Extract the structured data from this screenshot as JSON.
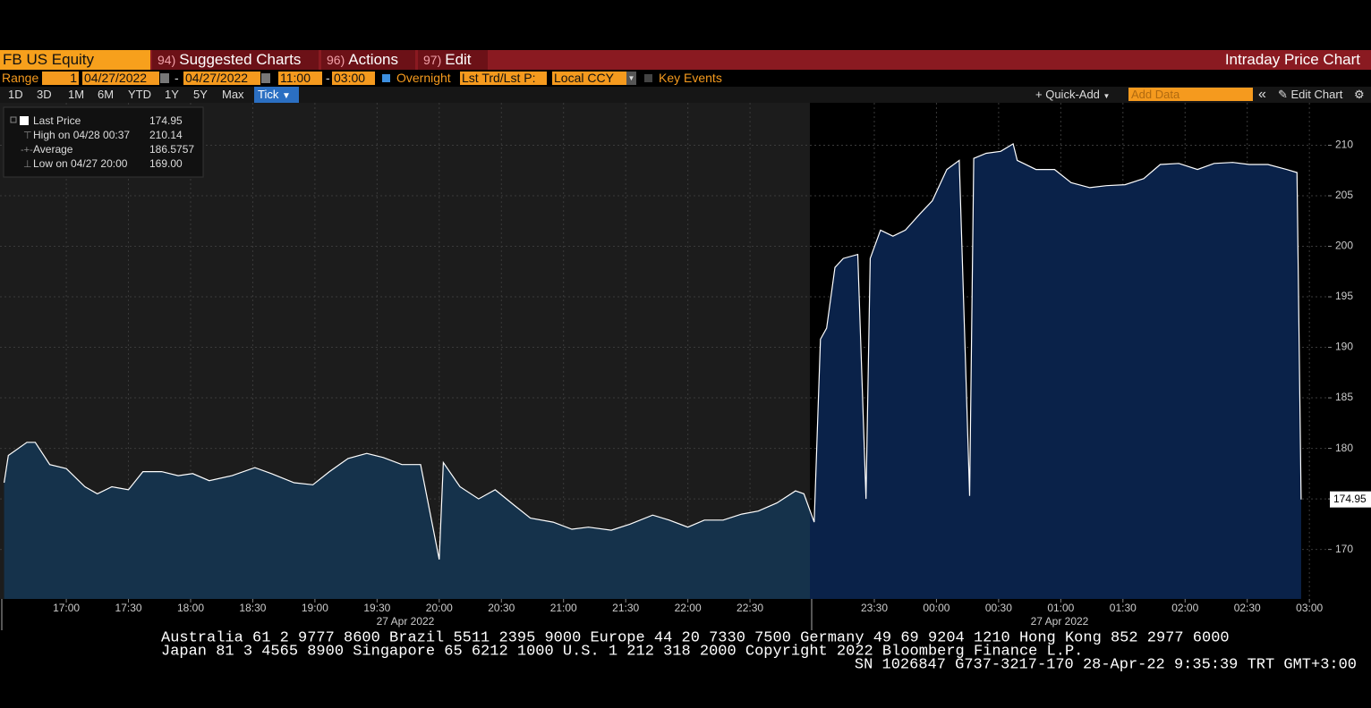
{
  "toolbar": {
    "security": "FB US Equity",
    "menus": [
      {
        "number": "94)",
        "label": "Suggested Charts"
      },
      {
        "number": "96)",
        "label": "Actions"
      },
      {
        "number": "97)",
        "label": "Edit"
      }
    ],
    "function_title": "Intraday Price Chart"
  },
  "range_bar": {
    "label": "Range",
    "period": "1",
    "start_date": "04/27/2022",
    "separator": "-",
    "end_date": "04/27/2022",
    "start_time": "11:00",
    "end_time": "03:00",
    "overnight": "Overnight",
    "price_type": "Lst Trd/Lst P:",
    "currency": "Local CCY",
    "key_events": "Key Events"
  },
  "period_tabs": {
    "tabs": [
      "1D",
      "3D",
      "1M",
      "6M",
      "YTD",
      "1Y",
      "5Y",
      "Max",
      "Tick"
    ],
    "selected": 8
  },
  "chart_tools": {
    "quick_add": "Quick-Add",
    "add_data": "Add Data",
    "edit_chart": "Edit Chart"
  },
  "legend": {
    "labels": [
      "Last Price",
      "High on 04/28 00:37",
      "Average",
      "Low on 04/27 20:00"
    ],
    "values": [
      174.95,
      210.14,
      186.5757,
      169
    ],
    "value_labels": [
      "174.95",
      "210.14",
      "186.5757",
      "169.00"
    ]
  },
  "chart_data": {
    "type": "area",
    "date_labels": [
      "27 Apr 2022",
      "27 Apr 2022"
    ],
    "xlim": [
      988,
      1629
    ],
    "ylim": [
      165.1,
      214.2
    ],
    "xticks": [
      {
        "value": 1020,
        "label": "17:00"
      },
      {
        "value": 1050,
        "label": "17:30"
      },
      {
        "value": 1080,
        "label": "18:00"
      },
      {
        "value": 1110,
        "label": "18:30"
      },
      {
        "value": 1140,
        "label": "19:00"
      },
      {
        "value": 1170,
        "label": "19:30"
      },
      {
        "value": 1200,
        "label": "20:00"
      },
      {
        "value": 1230,
        "label": "20:30"
      },
      {
        "value": 1260,
        "label": "21:00"
      },
      {
        "value": 1290,
        "label": "21:30"
      },
      {
        "value": 1320,
        "label": "22:00"
      },
      {
        "value": 1350,
        "label": "22:30"
      },
      {
        "value": 1410,
        "label": "23:30"
      },
      {
        "value": 1440,
        "label": "00:00"
      },
      {
        "value": 1470,
        "label": "00:30"
      },
      {
        "value": 1500,
        "label": "01:00"
      },
      {
        "value": 1530,
        "label": "01:30"
      },
      {
        "value": 1560,
        "label": "02:00"
      },
      {
        "value": 1590,
        "label": "02:30"
      },
      {
        "value": 1620,
        "label": "03:00"
      }
    ],
    "yticks": [
      170,
      175,
      180,
      185,
      190,
      195,
      200,
      205,
      210
    ],
    "grid": true,
    "series": [
      {
        "name": "Last Price",
        "color": "#ffffff",
        "fill_colors": [
          "#15324b",
          "#0a2249"
        ],
        "x": [
          990,
          992,
          1001,
          1005,
          1012,
          1020,
          1029,
          1035,
          1042,
          1050,
          1057,
          1066,
          1074,
          1081,
          1089,
          1100,
          1111,
          1119,
          1130,
          1139,
          1147,
          1156,
          1165,
          1173,
          1182,
          1191,
          1200,
          1202,
          1210,
          1219,
          1227,
          1236,
          1244,
          1255,
          1264,
          1272,
          1283,
          1292,
          1303,
          1311,
          1320,
          1328,
          1337,
          1346,
          1354,
          1363,
          1372,
          1376,
          1381,
          1384,
          1387,
          1391,
          1395,
          1402,
          1406,
          1408,
          1413,
          1419,
          1425,
          1432,
          1438,
          1445,
          1451,
          1456,
          1458,
          1464,
          1471,
          1477,
          1479,
          1488,
          1497,
          1505,
          1514,
          1522,
          1531,
          1540,
          1548,
          1557,
          1566,
          1574,
          1583,
          1591,
          1600,
          1609,
          1614,
          1616
        ],
        "values": [
          176.6,
          179.3,
          180.6,
          180.6,
          178.4,
          178.0,
          176.2,
          175.5,
          176.2,
          175.9,
          177.7,
          177.7,
          177.3,
          177.5,
          176.8,
          177.3,
          178.1,
          177.5,
          176.6,
          176.4,
          177.7,
          179.0,
          179.5,
          179.1,
          178.4,
          178.4,
          169.0,
          178.6,
          176.2,
          175.0,
          175.9,
          174.4,
          173.1,
          172.7,
          172.0,
          172.2,
          171.9,
          172.5,
          173.4,
          172.9,
          172.2,
          172.9,
          172.9,
          173.5,
          173.8,
          174.6,
          175.8,
          175.5,
          172.7,
          190.8,
          191.9,
          197.9,
          198.8,
          199.2,
          175.0,
          198.8,
          201.6,
          201.0,
          201.6,
          203.2,
          204.5,
          207.6,
          208.5,
          175.3,
          208.7,
          209.2,
          209.4,
          210.14,
          208.5,
          207.6,
          207.6,
          206.3,
          205.8,
          206.0,
          206.1,
          206.7,
          208.1,
          208.2,
          207.6,
          208.2,
          208.3,
          208.1,
          208.1,
          207.6,
          207.3,
          174.95
        ]
      }
    ]
  },
  "footer": {
    "lines": [
      "Australia 61 2 9777 8600 Brazil 5511 2395 9000 Europe 44 20 7330 7500 Germany 49 69 9204 1210 Hong Kong 852 2977 6000",
      "Japan 81 3 4565 8900      Singapore 65 6212 1000     U.S. 1 212 318 2000       Copyright 2022 Bloomberg Finance L.P.",
      "SN 1026847 G737-3217-170 28-Apr-22  9:35:39 TRT  GMT+3:00"
    ]
  }
}
